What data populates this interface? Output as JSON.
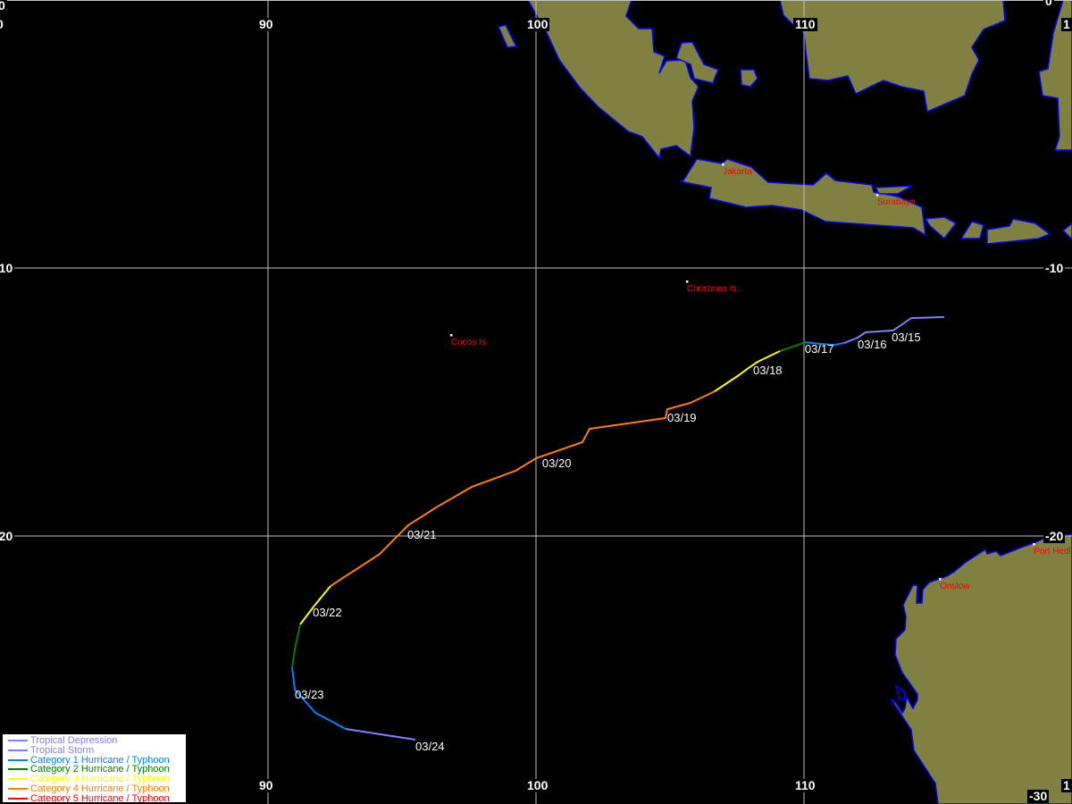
{
  "map": {
    "lon_range": [
      80,
      120
    ],
    "lat_range": [
      -30,
      0
    ],
    "grid_lons": [
      90,
      100,
      110
    ],
    "grid_lats": [
      -10,
      -20
    ],
    "colors": {
      "land": "#808040",
      "coast": "#0000ff",
      "ocean": "#000000",
      "grid": "#c0c0c0"
    }
  },
  "axis_labels": {
    "top": [
      "0",
      "90",
      "100",
      "110",
      "1"
    ],
    "top_lat_left": "0",
    "top_lat_right": "0",
    "left": [
      "-10",
      "-20"
    ],
    "right": [
      "-10",
      "-20"
    ],
    "bottom": [
      "90",
      "100",
      "110",
      "1"
    ],
    "bottom_lat_right": "-30"
  },
  "legend": {
    "items": [
      {
        "label": "Tropical Depression",
        "color": "#8080ff"
      },
      {
        "label": "Tropical Storm",
        "color": "#8080ff"
      },
      {
        "label": "Category 1 Hurricane / Typhoon",
        "color": "#0080ff"
      },
      {
        "label": "Category 2 Hurricane / Typhoon",
        "color": "#008000"
      },
      {
        "label": "Category 3 Hurricane / Typhoon",
        "color": "#ffff00"
      },
      {
        "label": "Category 4 Hurricane / Typhoon",
        "color": "#ff8000"
      },
      {
        "label": "Category 5 Hurricane / Typhoon",
        "color": "#ff0000"
      }
    ]
  },
  "track": [
    {
      "category": "Tropical Storm",
      "color": "#8080ff",
      "points": [
        [
          115.23,
          -11.83
        ],
        [
          114.0,
          -11.87
        ],
        [
          113.33,
          -12.33
        ],
        [
          112.3,
          -12.4
        ],
        [
          112.0,
          -12.6
        ],
        [
          111.5,
          -12.8
        ]
      ]
    },
    {
      "category": "Category 1 Hurricane / Typhoon",
      "color": "#0080ff",
      "points": [
        [
          111.5,
          -12.8
        ],
        [
          111.1,
          -12.87
        ],
        [
          110.6,
          -12.83
        ],
        [
          110.03,
          -12.77
        ]
      ]
    },
    {
      "category": "Category 2 Hurricane / Typhoon",
      "color": "#008000",
      "points": [
        [
          110.03,
          -12.77
        ],
        [
          109.77,
          -12.87
        ],
        [
          109.1,
          -13.1
        ]
      ]
    },
    {
      "category": "Category 3 Hurricane / Typhoon",
      "color": "#ffff00",
      "points": [
        [
          109.1,
          -13.1
        ],
        [
          108.27,
          -13.5
        ],
        [
          107.93,
          -13.73
        ],
        [
          107.57,
          -14.0
        ],
        [
          106.67,
          -14.6
        ]
      ]
    },
    {
      "category": "Category 4 Hurricane / Typhoon",
      "color": "#ff8000",
      "points": [
        [
          106.67,
          -14.6
        ],
        [
          105.77,
          -15.03
        ],
        [
          104.9,
          -15.27
        ],
        [
          104.83,
          -15.6
        ],
        [
          102.0,
          -16.0
        ],
        [
          101.73,
          -16.5
        ],
        [
          100.0,
          -17.1
        ],
        [
          99.23,
          -17.57
        ],
        [
          97.6,
          -18.17
        ],
        [
          96.33,
          -18.9
        ],
        [
          95.23,
          -19.6
        ],
        [
          94.17,
          -20.67
        ],
        [
          92.33,
          -21.87
        ]
      ]
    },
    {
      "category": "Category 3 Hurricane / Typhoon",
      "color": "#ffff00",
      "points": [
        [
          92.33,
          -21.87
        ],
        [
          91.73,
          -22.6
        ],
        [
          91.2,
          -23.3
        ]
      ]
    },
    {
      "category": "Category 2 Hurricane / Typhoon",
      "color": "#008000",
      "points": [
        [
          91.2,
          -23.3
        ],
        [
          91.0,
          -24.23
        ],
        [
          90.9,
          -24.9
        ]
      ]
    },
    {
      "category": "Category 1 Hurricane / Typhoon",
      "color": "#0080ff",
      "points": [
        [
          90.9,
          -24.9
        ],
        [
          91.0,
          -25.73
        ],
        [
          91.77,
          -26.6
        ],
        [
          92.9,
          -27.2
        ]
      ]
    },
    {
      "category": "Tropical Storm",
      "color": "#8080ff",
      "points": [
        [
          92.9,
          -27.2
        ],
        [
          95.5,
          -27.6
        ]
      ]
    }
  ],
  "date_labels": [
    {
      "text": "03/15",
      "lon": 113.27,
      "lat": -12.33
    },
    {
      "text": "03/16",
      "lon": 112.0,
      "lat": -12.6
    },
    {
      "text": "03/17",
      "lon": 110.03,
      "lat": -12.77
    },
    {
      "text": "03/18",
      "lon": 108.1,
      "lat": -13.57
    },
    {
      "text": "03/19",
      "lon": 104.9,
      "lat": -15.33
    },
    {
      "text": "03/20",
      "lon": 100.23,
      "lat": -17.03
    },
    {
      "text": "03/21",
      "lon": 95.2,
      "lat": -19.7
    },
    {
      "text": "03/22",
      "lon": 91.67,
      "lat": -22.6
    },
    {
      "text": "03/23",
      "lon": 91.0,
      "lat": -25.67
    },
    {
      "text": "03/24",
      "lon": 95.5,
      "lat": -27.6
    }
  ],
  "cities": [
    {
      "name": "Jakarta",
      "lon": 106.97,
      "lat": -6.13
    },
    {
      "name": "Surabaya",
      "lon": 112.73,
      "lat": -7.27
    },
    {
      "name": "Christmas Is.",
      "lon": 105.63,
      "lat": -10.5
    },
    {
      "name": "Cocos Is.",
      "lon": 96.83,
      "lat": -12.5
    },
    {
      "name": "Onslow",
      "lon": 115.07,
      "lat": -21.6
    },
    {
      "name": "Port Hedl",
      "lon": 118.57,
      "lat": -20.3
    }
  ]
}
